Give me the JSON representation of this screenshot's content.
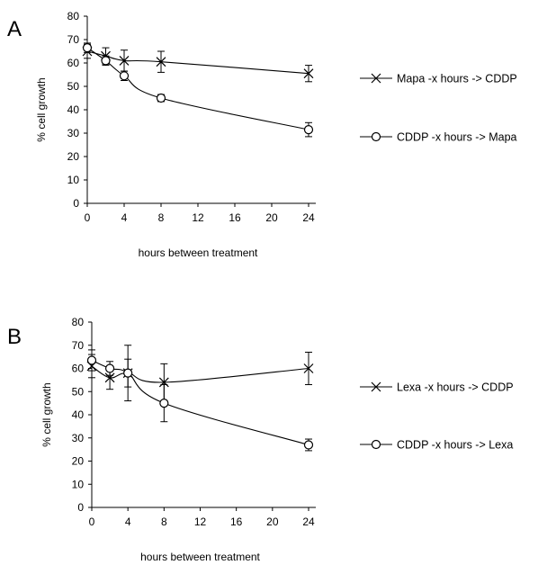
{
  "figure": {
    "panels": [
      {
        "label": "A"
      },
      {
        "label": "B"
      }
    ]
  },
  "chart_data": [
    {
      "type": "line",
      "panel": "A",
      "title": "",
      "xlabel": "hours between treatment",
      "ylabel": "% cell growth",
      "xlim": [
        0,
        24
      ],
      "ylim": [
        0,
        80
      ],
      "xticks": [
        0,
        4,
        8,
        12,
        16,
        20,
        24
      ],
      "yticks": [
        0,
        10,
        20,
        30,
        40,
        50,
        60,
        70,
        80
      ],
      "grid": false,
      "legend_position": "right",
      "series": [
        {
          "name": "Mapa -x hours -> CDDP",
          "marker": "x",
          "x": [
            0,
            2,
            4,
            8,
            24
          ],
          "y": [
            65,
            63,
            61,
            60.5,
            55.5
          ],
          "error": [
            3,
            3.5,
            4.5,
            4.5,
            3.5
          ]
        },
        {
          "name": "CDDP -x hours -> Mapa",
          "marker": "circle",
          "x": [
            0,
            2,
            4,
            8,
            24
          ],
          "y": [
            66.5,
            61,
            54.5,
            45,
            31.5
          ],
          "error": [
            2,
            2,
            2,
            1.5,
            3
          ]
        }
      ]
    },
    {
      "type": "line",
      "panel": "B",
      "title": "",
      "xlabel": "hours between treatment",
      "ylabel": "% cell growth",
      "xlim": [
        0,
        24
      ],
      "ylim": [
        0,
        80
      ],
      "xticks": [
        0,
        4,
        8,
        12,
        16,
        20,
        24
      ],
      "yticks": [
        0,
        10,
        20,
        30,
        40,
        50,
        60,
        70,
        80
      ],
      "grid": false,
      "legend_position": "right",
      "series": [
        {
          "name": "Lexa -x hours -> CDDP",
          "marker": "x",
          "x": [
            0,
            2,
            4,
            8,
            24
          ],
          "y": [
            61,
            56,
            58,
            54,
            60
          ],
          "error": [
            5,
            5,
            12,
            8,
            7
          ]
        },
        {
          "name": "CDDP -x hours -> Lexa",
          "marker": "circle",
          "x": [
            0,
            2,
            4,
            8,
            24
          ],
          "y": [
            63.5,
            60,
            58,
            45,
            27
          ],
          "error": [
            4.5,
            3,
            6,
            8,
            2.5
          ]
        }
      ]
    }
  ]
}
